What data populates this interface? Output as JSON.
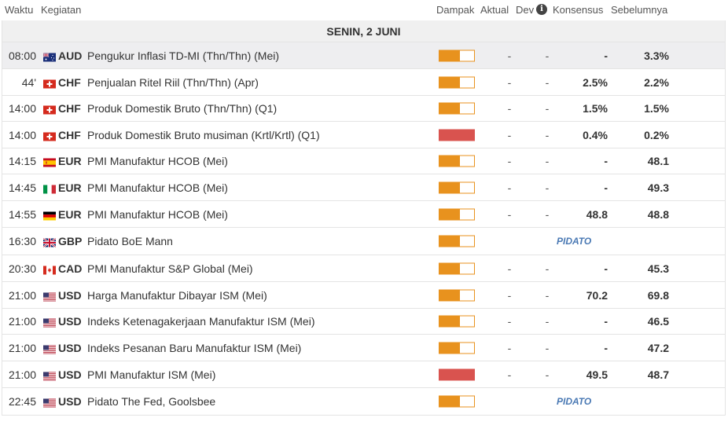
{
  "header": {
    "waktu": "Waktu",
    "kegiatan": "Kegiatan",
    "dampak": "Dampak",
    "aktual": "Aktual",
    "dev": "Dev",
    "konsensus": "Konsensus",
    "sebelumnya": "Sebelumnya"
  },
  "date_label": "SENIN, 2 JUNI",
  "colors": {
    "impact_medium": "#e8921e",
    "impact_high": "#d9534f",
    "speech_tag": "#4a79b4"
  },
  "events": [
    {
      "time": "08:00",
      "flag": "au",
      "currency": "AUD",
      "event": "Pengukur Inflasi TD-MI (Thn/Thn) (Mei)",
      "impact": "medium",
      "actual": "-",
      "dev": "-",
      "consensus": "-",
      "previous": "3.3%",
      "highlight": true
    },
    {
      "time": "44'",
      "flag": "ch",
      "currency": "CHF",
      "event": "Penjualan Ritel Riil (Thn/Thn) (Apr)",
      "impact": "medium",
      "actual": "-",
      "dev": "-",
      "consensus": "2.5%",
      "previous": "2.2%"
    },
    {
      "time": "14:00",
      "flag": "ch",
      "currency": "CHF",
      "event": "Produk Domestik Bruto (Thn/Thn) (Q1)",
      "impact": "medium",
      "actual": "-",
      "dev": "-",
      "consensus": "1.5%",
      "previous": "1.5%"
    },
    {
      "time": "14:00",
      "flag": "ch",
      "currency": "CHF",
      "event": "Produk Domestik Bruto musiman (Krtl/Krtl) (Q1)",
      "impact": "high",
      "actual": "-",
      "dev": "-",
      "consensus": "0.4%",
      "previous": "0.2%"
    },
    {
      "time": "14:15",
      "flag": "es",
      "currency": "EUR",
      "event": "PMI Manufaktur HCOB (Mei)",
      "impact": "medium",
      "actual": "-",
      "dev": "-",
      "consensus": "-",
      "previous": "48.1"
    },
    {
      "time": "14:45",
      "flag": "it",
      "currency": "EUR",
      "event": "PMI Manufaktur HCOB (Mei)",
      "impact": "medium",
      "actual": "-",
      "dev": "-",
      "consensus": "-",
      "previous": "49.3"
    },
    {
      "time": "14:55",
      "flag": "de",
      "currency": "EUR",
      "event": "PMI Manufaktur HCOB (Mei)",
      "impact": "medium",
      "actual": "-",
      "dev": "-",
      "consensus": "48.8",
      "previous": "48.8"
    },
    {
      "time": "16:30",
      "flag": "gb",
      "currency": "GBP",
      "event": "Pidato BoE Mann",
      "impact": "medium",
      "speech": "PIDATO"
    },
    {
      "time": "20:30",
      "flag": "ca",
      "currency": "CAD",
      "event": "PMI Manufaktur S&P Global (Mei)",
      "impact": "medium",
      "actual": "-",
      "dev": "-",
      "consensus": "-",
      "previous": "45.3"
    },
    {
      "time": "21:00",
      "flag": "us",
      "currency": "USD",
      "event": "Harga Manufaktur Dibayar ISM (Mei)",
      "impact": "medium",
      "actual": "-",
      "dev": "-",
      "consensus": "70.2",
      "previous": "69.8"
    },
    {
      "time": "21:00",
      "flag": "us",
      "currency": "USD",
      "event": "Indeks Ketenagakerjaan Manufaktur ISM (Mei)",
      "impact": "medium",
      "actual": "-",
      "dev": "-",
      "consensus": "-",
      "previous": "46.5"
    },
    {
      "time": "21:00",
      "flag": "us",
      "currency": "USD",
      "event": "Indeks Pesanan Baru Manufaktur ISM (Mei)",
      "impact": "medium",
      "actual": "-",
      "dev": "-",
      "consensus": "-",
      "previous": "47.2"
    },
    {
      "time": "21:00",
      "flag": "us",
      "currency": "USD",
      "event": "PMI Manufaktur ISM (Mei)",
      "impact": "high",
      "actual": "-",
      "dev": "-",
      "consensus": "49.5",
      "previous": "48.7"
    },
    {
      "time": "22:45",
      "flag": "us",
      "currency": "USD",
      "event": "Pidato The Fed, Goolsbee",
      "impact": "medium",
      "speech": "PIDATO"
    }
  ]
}
